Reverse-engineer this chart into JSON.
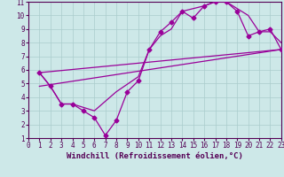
{
  "background_color": "#cde8e8",
  "line_color": "#990099",
  "grid_color": "#aacccc",
  "xlabel": "Windchill (Refroidissement éolien,°C)",
  "xlim": [
    0,
    23
  ],
  "ylim": [
    1,
    11
  ],
  "xticks": [
    0,
    1,
    2,
    3,
    4,
    5,
    6,
    7,
    8,
    9,
    10,
    11,
    12,
    13,
    14,
    15,
    16,
    17,
    18,
    19,
    20,
    21,
    22,
    23
  ],
  "yticks": [
    1,
    2,
    3,
    4,
    5,
    6,
    7,
    8,
    9,
    10,
    11
  ],
  "curve_jagged_x": [
    1,
    2,
    3,
    4,
    5,
    6,
    7,
    8,
    9,
    10,
    11,
    12,
    13,
    14,
    15,
    16,
    17,
    18,
    19,
    20,
    21,
    22,
    23
  ],
  "curve_jagged_y": [
    5.8,
    4.8,
    3.5,
    3.5,
    3.0,
    2.5,
    1.2,
    2.3,
    4.4,
    5.2,
    7.5,
    8.8,
    9.5,
    10.3,
    9.8,
    10.7,
    11.0,
    11.0,
    10.3,
    8.5,
    8.8,
    9.0,
    7.5
  ],
  "curve_smooth_x": [
    1,
    2,
    3,
    4,
    6,
    8,
    10,
    11,
    12,
    13,
    14,
    15,
    16,
    17,
    18,
    19,
    20,
    21,
    22,
    23
  ],
  "curve_smooth_y": [
    5.8,
    4.8,
    3.5,
    3.5,
    3.0,
    4.4,
    5.5,
    7.5,
    8.5,
    9.0,
    10.3,
    10.5,
    10.7,
    11.0,
    11.0,
    10.5,
    10.0,
    8.8,
    8.8,
    8.0
  ],
  "line1_x": [
    1,
    23
  ],
  "line1_y": [
    5.8,
    7.5
  ],
  "line2_x": [
    1,
    23
  ],
  "line2_y": [
    4.8,
    7.5
  ],
  "marker": "D",
  "markersize": 2.5,
  "linewidth": 0.9,
  "tick_fontsize": 5.5,
  "xlabel_fontsize": 6.5
}
